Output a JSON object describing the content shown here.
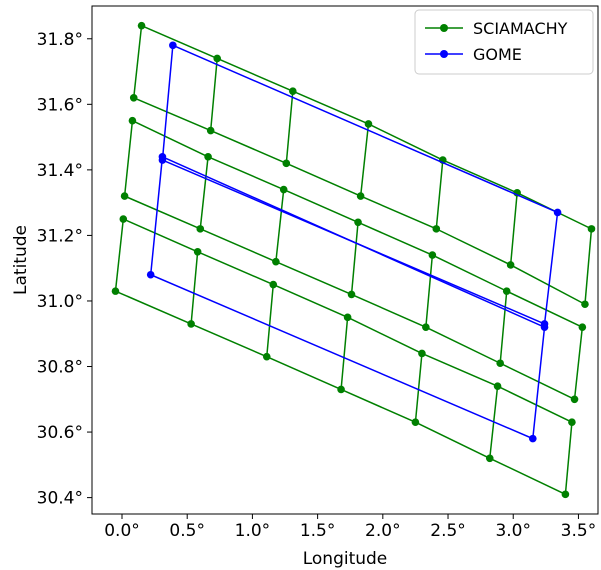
{
  "chart_data": {
    "type": "line",
    "title": "",
    "xlabel": "Longitude",
    "ylabel": "Latitude",
    "xlim": [
      -0.23,
      3.65
    ],
    "ylim": [
      30.35,
      31.9
    ],
    "xticks": [
      0.0,
      0.5,
      1.0,
      1.5,
      2.0,
      2.5,
      3.0,
      3.5
    ],
    "xtick_labels": [
      "0.0°",
      "0.5°",
      "1.0°",
      "1.5°",
      "2.0°",
      "2.5°",
      "3.0°",
      "3.5°"
    ],
    "yticks": [
      30.4,
      30.6,
      30.8,
      31.0,
      31.2,
      31.4,
      31.6,
      31.8
    ],
    "ytick_labels": [
      "30.4°",
      "30.6°",
      "30.8°",
      "31.0°",
      "31.2°",
      "31.4°",
      "31.6°",
      "31.8°"
    ],
    "grid": false,
    "legend_position": "top-right",
    "series": [
      {
        "name": "SCIAMACHY",
        "color": "#008000",
        "grid_points": [
          [
            [
              0.15,
              31.84
            ],
            [
              0.73,
              31.74
            ],
            [
              1.31,
              31.64
            ],
            [
              1.89,
              31.54
            ],
            [
              2.46,
              31.43
            ],
            [
              3.03,
              31.33
            ],
            [
              3.6,
              31.22
            ]
          ],
          [
            [
              0.09,
              31.62
            ],
            [
              0.68,
              31.52
            ],
            [
              1.26,
              31.42
            ],
            [
              1.83,
              31.32
            ],
            [
              2.41,
              31.22
            ],
            [
              2.98,
              31.11
            ],
            [
              3.55,
              30.99
            ]
          ],
          [
            [
              0.08,
              31.55
            ],
            [
              0.66,
              31.44
            ],
            [
              1.24,
              31.34
            ],
            [
              1.81,
              31.24
            ],
            [
              2.38,
              31.14
            ],
            [
              2.95,
              31.03
            ],
            [
              3.53,
              30.92
            ]
          ],
          [
            [
              0.02,
              31.32
            ],
            [
              0.6,
              31.22
            ],
            [
              1.18,
              31.12
            ],
            [
              1.76,
              31.02
            ],
            [
              2.33,
              30.92
            ],
            [
              2.9,
              30.81
            ],
            [
              3.47,
              30.7
            ]
          ],
          [
            [
              0.01,
              31.25
            ],
            [
              0.58,
              31.15
            ],
            [
              1.16,
              31.05
            ],
            [
              1.73,
              30.95
            ],
            [
              2.3,
              30.84
            ],
            [
              2.88,
              30.74
            ],
            [
              3.45,
              30.63
            ]
          ],
          [
            [
              -0.05,
              31.03
            ],
            [
              0.53,
              30.93
            ],
            [
              1.11,
              30.83
            ],
            [
              1.68,
              30.73
            ],
            [
              2.25,
              30.63
            ],
            [
              2.82,
              30.52
            ],
            [
              3.4,
              30.41
            ]
          ]
        ],
        "cells": [
          [
            0,
            1
          ],
          [
            2,
            3
          ],
          [
            4,
            5
          ]
        ]
      },
      {
        "name": "GOME",
        "color": "#0000ff",
        "polygons": [
          [
            [
              0.39,
              31.78
            ],
            [
              3.34,
              31.27
            ],
            [
              3.24,
              30.93
            ],
            [
              0.31,
              31.43
            ]
          ],
          [
            [
              0.31,
              31.44
            ],
            [
              3.24,
              30.92
            ],
            [
              3.15,
              30.58
            ],
            [
              0.22,
              31.08
            ]
          ]
        ]
      }
    ]
  }
}
